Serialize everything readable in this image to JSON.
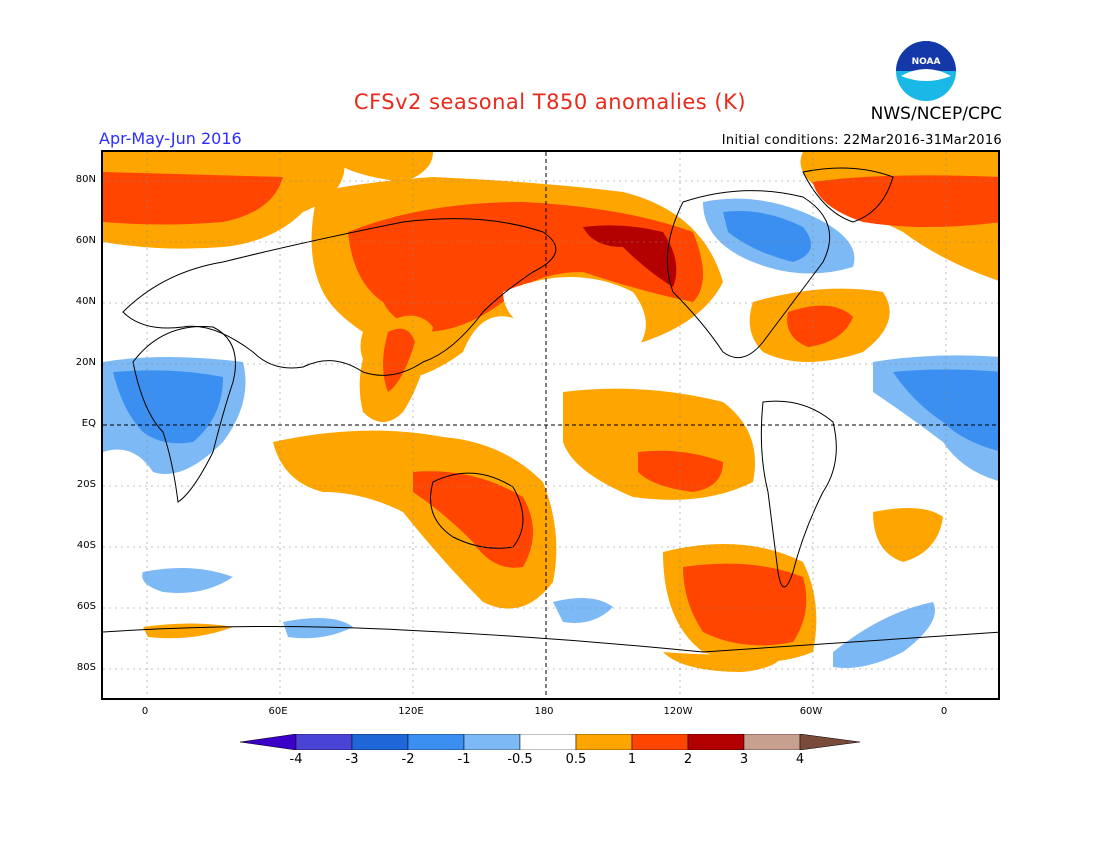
{
  "header": {
    "title": "CFSv2 seasonal T850 anomalies (K)",
    "source": "NWS/NCEP/CPC",
    "season": "Apr-May-Jun 2016",
    "initial_conditions": "Initial conditions: 22Mar2016-31Mar2016",
    "logo_text": "NOAA"
  },
  "axes": {
    "lat_labels": [
      "80N",
      "60N",
      "40N",
      "20N",
      "EQ",
      "20S",
      "40S",
      "60S",
      "80S"
    ],
    "lon_labels": [
      "0",
      "60E",
      "120E",
      "180",
      "120W",
      "60W",
      "0"
    ]
  },
  "colorbar": {
    "units": "K",
    "labels": [
      "-4",
      "-3",
      "-2",
      "-1",
      "-0.5",
      "0.5",
      "1",
      "2",
      "3",
      "4"
    ],
    "colors": [
      "#3a00c8",
      "#4a44d6",
      "#1f66d9",
      "#3a8ff0",
      "#7cb9f5",
      "#ffffff",
      "#ffa500",
      "#ff4500",
      "#b30000",
      "#c8a090",
      "#7a4a3a"
    ]
  },
  "map_colors": {
    "orange": "#ffa500",
    "red": "#ff4500",
    "darkred": "#b30000",
    "lightblue": "#7cb9f5",
    "blue": "#3a8ff0"
  }
}
